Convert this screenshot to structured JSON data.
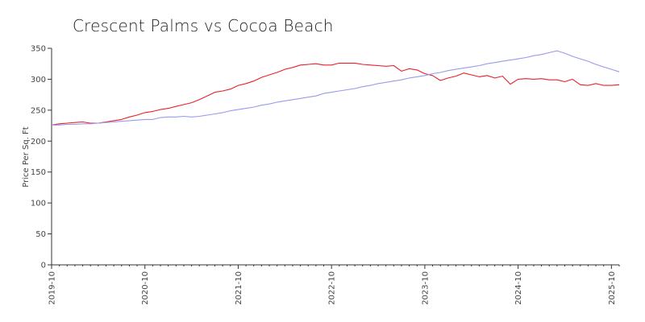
{
  "chart_data": {
    "type": "line",
    "title": "Crescent Palms vs Cocoa Beach",
    "xlabel": "",
    "ylabel": "Price Per Sq. Ft",
    "ylim": [
      0,
      350
    ],
    "yticks": [
      "0",
      "50",
      "100",
      "150",
      "200",
      "250",
      "300",
      "350"
    ],
    "xticks": [
      "2019-10",
      "2020-10",
      "2021-10",
      "2022-10",
      "2023-10",
      "2024-10",
      "2025-10"
    ],
    "grid": false,
    "x": [
      "2019-10",
      "2019-11",
      "2019-12",
      "2020-01",
      "2020-02",
      "2020-03",
      "2020-04",
      "2020-05",
      "2020-06",
      "2020-07",
      "2020-08",
      "2020-09",
      "2020-10",
      "2020-11",
      "2020-12",
      "2021-01",
      "2021-02",
      "2021-03",
      "2021-04",
      "2021-05",
      "2021-06",
      "2021-07",
      "2021-08",
      "2021-09",
      "2021-10",
      "2021-11",
      "2021-12",
      "2022-01",
      "2022-02",
      "2022-03",
      "2022-04",
      "2022-05",
      "2022-06",
      "2022-07",
      "2022-08",
      "2022-09",
      "2022-10",
      "2022-11",
      "2022-12",
      "2023-01",
      "2023-02",
      "2023-03",
      "2023-04",
      "2023-05",
      "2023-06",
      "2023-07",
      "2023-08",
      "2023-09",
      "2023-10",
      "2023-11",
      "2023-12",
      "2024-01",
      "2024-02",
      "2024-03",
      "2024-04",
      "2024-05",
      "2024-06",
      "2024-07",
      "2024-08",
      "2024-09",
      "2024-10",
      "2024-11",
      "2024-12",
      "2025-01",
      "2025-02",
      "2025-03",
      "2025-04",
      "2025-05",
      "2025-06",
      "2025-07",
      "2025-08",
      "2025-09",
      "2025-10",
      "2025-11"
    ],
    "series": [
      {
        "color": "#e8202a",
        "values": [
          226,
          228,
          229,
          230,
          231,
          229,
          229,
          231,
          233,
          235,
          239,
          242,
          246,
          248,
          251,
          253,
          256,
          259,
          262,
          267,
          273,
          279,
          281,
          284,
          290,
          293,
          297,
          303,
          307,
          311,
          316,
          319,
          323,
          324,
          325,
          323,
          323,
          326,
          326,
          326,
          324,
          323,
          322,
          321,
          322,
          313,
          317,
          315,
          309,
          306,
          298,
          302,
          305,
          310,
          307,
          304,
          306,
          302,
          305,
          292,
          300,
          301,
          300,
          301,
          299,
          299,
          296,
          300,
          291,
          290,
          293,
          290,
          290,
          291
        ]
      },
      {
        "color": "#9999ee",
        "values": [
          226,
          226,
          227,
          227,
          228,
          228,
          229,
          230,
          231,
          232,
          233,
          234,
          235,
          235,
          238,
          239,
          239,
          240,
          239,
          240,
          242,
          244,
          246,
          249,
          251,
          253,
          255,
          258,
          260,
          263,
          265,
          267,
          269,
          271,
          273,
          277,
          279,
          281,
          283,
          285,
          288,
          290,
          293,
          295,
          297,
          299,
          302,
          304,
          306,
          309,
          311,
          314,
          316,
          318,
          320,
          322,
          325,
          327,
          329,
          331,
          333,
          335,
          338,
          340,
          343,
          346,
          342,
          337,
          333,
          329,
          324,
          320,
          316,
          312
        ]
      }
    ]
  }
}
